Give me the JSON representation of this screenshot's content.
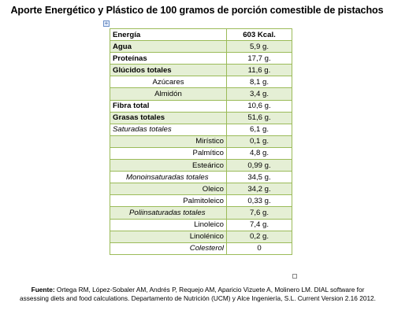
{
  "title": "Aporte Energético y Plástico de 100 gramos de porción comestible de pistachos",
  "table": {
    "rows": [
      {
        "name": "Energía",
        "value": "603 Kcal."
      },
      {
        "name": "Agua",
        "value": "5,9 g."
      },
      {
        "name": "Proteínas",
        "value": "17,7 g."
      },
      {
        "name": "Glúcidos totales",
        "value": "11,6 g."
      },
      {
        "name": "Azúcares",
        "value": "8,1 g."
      },
      {
        "name": "Almidón",
        "value": "3,4 g."
      },
      {
        "name": "Fibra total",
        "value": "10,6 g."
      },
      {
        "name": "Grasas totales",
        "value": "51,6 g."
      },
      {
        "name": "Saturadas totales",
        "value": "6,1 g."
      },
      {
        "name": "Mirístico",
        "value": "0,1 g."
      },
      {
        "name": "Palmítico",
        "value": "4,8 g."
      },
      {
        "name": "Esteárico",
        "value": "0,99 g."
      },
      {
        "name": "Monoinsaturadas totales",
        "value": "34,5 g."
      },
      {
        "name": "Oleico",
        "value": "34,2 g."
      },
      {
        "name": "Palmitoleico",
        "value": "0,33 g."
      },
      {
        "name": "Poliinsaturadas totales",
        "value": "7,6 g."
      },
      {
        "name": "Linoleico",
        "value": "7,4 g."
      },
      {
        "name": "Linolénico",
        "value": "0,2 g."
      },
      {
        "name": "Colesterol",
        "value": "0"
      }
    ]
  },
  "footer": {
    "label": "Fuente:",
    "text": "Ortega RM, López-Sobaler AM, Andrés P, Requejo AM, Aparicio Vizuete A, Molinero LM. DIAL software for assessing diets and food calculations. Departamento de Nutrición (UCM) y Alce Ingeniería, S.L. Current Version 2.16 2012."
  }
}
